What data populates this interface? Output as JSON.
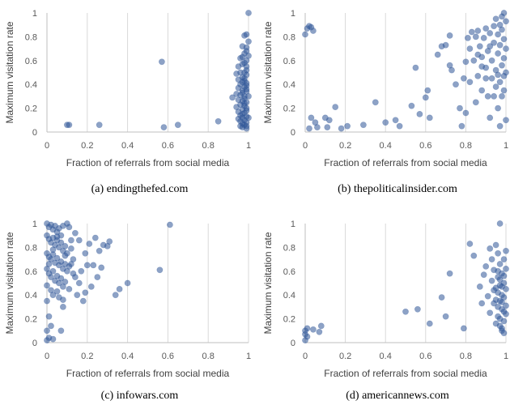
{
  "chart_data": [
    {
      "type": "scatter",
      "caption": "(a)  endingthefed.com",
      "xlabel": "Fraction of referrals from social media",
      "ylabel": "Maximum visitation rate",
      "xlim": [
        0,
        1
      ],
      "ylim": [
        0,
        1
      ],
      "xticks": [
        "0",
        "0.2",
        "0.4",
        "0.6",
        "0.8",
        "1"
      ],
      "yticks": [
        "0",
        "0.2",
        "0.4",
        "0.6",
        "0.8",
        "1"
      ],
      "grid": "vertical",
      "color": "#2f5597",
      "points": [
        [
          0.11,
          0.06
        ],
        [
          0.1,
          0.06
        ],
        [
          0.26,
          0.06
        ],
        [
          0.57,
          0.59
        ],
        [
          0.58,
          0.04
        ],
        [
          0.65,
          0.06
        ],
        [
          0.85,
          0.09
        ],
        [
          1.0,
          1.0
        ],
        [
          0.99,
          0.82
        ],
        [
          0.98,
          0.81
        ],
        [
          0.99,
          0.71
        ],
        [
          0.97,
          0.72
        ],
        [
          0.98,
          0.66
        ],
        [
          0.97,
          0.63
        ],
        [
          0.96,
          0.62
        ],
        [
          0.99,
          0.6
        ],
        [
          0.97,
          0.57
        ],
        [
          0.95,
          0.55
        ],
        [
          0.99,
          0.55
        ],
        [
          0.96,
          0.5
        ],
        [
          0.94,
          0.49
        ],
        [
          0.99,
          0.48
        ],
        [
          0.97,
          0.46
        ],
        [
          0.95,
          0.44
        ],
        [
          0.98,
          0.43
        ],
        [
          0.99,
          0.41
        ],
        [
          0.96,
          0.4
        ],
        [
          0.98,
          0.38
        ],
        [
          0.95,
          0.37
        ],
        [
          0.97,
          0.35
        ],
        [
          0.99,
          0.34
        ],
        [
          0.94,
          0.32
        ],
        [
          0.96,
          0.31
        ],
        [
          0.98,
          0.3
        ],
        [
          0.92,
          0.29
        ],
        [
          0.95,
          0.27
        ],
        [
          0.97,
          0.26
        ],
        [
          0.99,
          0.25
        ],
        [
          0.96,
          0.23
        ],
        [
          0.98,
          0.22
        ],
        [
          0.94,
          0.21
        ],
        [
          0.97,
          0.19
        ],
        [
          0.99,
          0.18
        ],
        [
          0.95,
          0.17
        ],
        [
          0.98,
          0.16
        ],
        [
          0.96,
          0.14
        ],
        [
          0.99,
          0.13
        ],
        [
          0.97,
          0.12
        ],
        [
          0.95,
          0.11
        ],
        [
          0.98,
          0.1
        ],
        [
          0.96,
          0.09
        ],
        [
          0.99,
          0.08
        ],
        [
          0.97,
          0.07
        ],
        [
          0.98,
          0.06
        ],
        [
          0.99,
          0.05
        ],
        [
          0.96,
          0.05
        ],
        [
          0.97,
          0.15
        ],
        [
          0.99,
          0.2
        ],
        [
          0.98,
          0.28
        ],
        [
          0.97,
          0.33
        ],
        [
          0.99,
          0.36
        ],
        [
          0.98,
          0.45
        ],
        [
          0.99,
          0.52
        ],
        [
          0.98,
          0.58
        ],
        [
          1.0,
          0.64
        ],
        [
          0.99,
          0.68
        ],
        [
          1.0,
          0.76
        ],
        [
          0.98,
          0.5
        ],
        [
          0.97,
          0.42
        ],
        [
          0.99,
          0.39
        ],
        [
          1.0,
          0.3
        ],
        [
          0.98,
          0.24
        ],
        [
          1.0,
          0.12
        ],
        [
          0.99,
          0.03
        ],
        [
          0.97,
          0.04
        ]
      ]
    },
    {
      "type": "scatter",
      "caption": "(b)  thepoliticalinsider.com",
      "xlabel": "Fraction of referrals from social media",
      "ylabel": "Maximum visitation rate",
      "xlim": [
        0,
        1
      ],
      "ylim": [
        0,
        1
      ],
      "xticks": [
        "0",
        "0.2",
        "0.4",
        "0.6",
        "0.8",
        "1"
      ],
      "yticks": [
        "0",
        "0.2",
        "0.4",
        "0.6",
        "0.8",
        "1"
      ],
      "grid": "vertical",
      "color": "#2f5597",
      "points": [
        [
          0.0,
          0.82
        ],
        [
          0.01,
          0.87
        ],
        [
          0.02,
          0.89
        ],
        [
          0.03,
          0.88
        ],
        [
          0.04,
          0.85
        ],
        [
          0.02,
          0.03
        ],
        [
          0.03,
          0.12
        ],
        [
          0.05,
          0.08
        ],
        [
          0.06,
          0.04
        ],
        [
          0.1,
          0.12
        ],
        [
          0.11,
          0.04
        ],
        [
          0.12,
          0.1
        ],
        [
          0.15,
          0.21
        ],
        [
          0.18,
          0.03
        ],
        [
          0.21,
          0.05
        ],
        [
          0.29,
          0.06
        ],
        [
          0.35,
          0.25
        ],
        [
          0.4,
          0.08
        ],
        [
          0.45,
          0.1
        ],
        [
          0.47,
          0.05
        ],
        [
          0.53,
          0.22
        ],
        [
          0.55,
          0.54
        ],
        [
          0.57,
          0.15
        ],
        [
          0.6,
          0.29
        ],
        [
          0.61,
          0.35
        ],
        [
          0.62,
          0.12
        ],
        [
          0.66,
          0.65
        ],
        [
          0.68,
          0.72
        ],
        [
          0.7,
          0.73
        ],
        [
          0.72,
          0.81
        ],
        [
          0.72,
          0.56
        ],
        [
          0.73,
          0.52
        ],
        [
          0.75,
          0.4
        ],
        [
          0.77,
          0.2
        ],
        [
          0.78,
          0.05
        ],
        [
          0.79,
          0.45
        ],
        [
          0.8,
          0.59
        ],
        [
          0.81,
          0.79
        ],
        [
          0.82,
          0.7
        ],
        [
          0.83,
          0.84
        ],
        [
          0.84,
          0.6
        ],
        [
          0.85,
          0.25
        ],
        [
          0.86,
          0.47
        ],
        [
          0.86,
          0.85
        ],
        [
          0.87,
          0.72
        ],
        [
          0.88,
          0.35
        ],
        [
          0.88,
          0.63
        ],
        [
          0.89,
          0.79
        ],
        [
          0.9,
          0.54
        ],
        [
          0.9,
          0.87
        ],
        [
          0.91,
          0.3
        ],
        [
          0.91,
          0.68
        ],
        [
          0.92,
          0.12
        ],
        [
          0.92,
          0.83
        ],
        [
          0.93,
          0.45
        ],
        [
          0.93,
          0.6
        ],
        [
          0.94,
          0.89
        ],
        [
          0.94,
          0.75
        ],
        [
          0.95,
          0.38
        ],
        [
          0.95,
          0.52
        ],
        [
          0.95,
          0.95
        ],
        [
          0.96,
          0.2
        ],
        [
          0.96,
          0.66
        ],
        [
          0.96,
          0.82
        ],
        [
          0.97,
          0.42
        ],
        [
          0.97,
          0.73
        ],
        [
          0.97,
          0.9
        ],
        [
          0.98,
          0.3
        ],
        [
          0.98,
          0.56
        ],
        [
          0.98,
          0.86
        ],
        [
          0.99,
          1.0
        ],
        [
          0.99,
          0.62
        ],
        [
          0.99,
          0.78
        ],
        [
          0.99,
          0.47
        ],
        [
          1.0,
          0.93
        ],
        [
          1.0,
          0.7
        ],
        [
          1.0,
          0.5
        ],
        [
          1.0,
          0.1
        ],
        [
          0.98,
          0.97
        ],
        [
          0.97,
          0.05
        ],
        [
          0.9,
          0.45
        ],
        [
          0.88,
          0.55
        ],
        [
          0.86,
          0.65
        ],
        [
          0.85,
          0.8
        ],
        [
          0.92,
          0.72
        ],
        [
          0.94,
          0.3
        ],
        [
          0.96,
          0.48
        ],
        [
          0.99,
          0.35
        ],
        [
          0.82,
          0.42
        ],
        [
          0.8,
          0.16
        ]
      ]
    },
    {
      "type": "scatter",
      "caption": "(c)  infowars.com",
      "xlabel": "Fraction of referrals from social media",
      "ylabel": "Maximum visitation rate",
      "xlim": [
        0,
        1
      ],
      "ylim": [
        0,
        1
      ],
      "xticks": [
        "0",
        "0.2",
        "0.4",
        "0.6",
        "0.8",
        "1"
      ],
      "yticks": [
        "0",
        "0.2",
        "0.4",
        "0.6",
        "0.8",
        "1"
      ],
      "grid": "vertical",
      "color": "#2f5597",
      "points": [
        [
          0.0,
          1.0
        ],
        [
          0.01,
          0.97
        ],
        [
          0.02,
          0.99
        ],
        [
          0.03,
          0.95
        ],
        [
          0.04,
          0.98
        ],
        [
          0.05,
          0.93
        ],
        [
          0.06,
          0.96
        ],
        [
          0.07,
          0.9
        ],
        [
          0.08,
          0.98
        ],
        [
          0.1,
          1.0
        ],
        [
          0.11,
          0.97
        ],
        [
          0.0,
          0.9
        ],
        [
          0.01,
          0.87
        ],
        [
          0.02,
          0.84
        ],
        [
          0.03,
          0.88
        ],
        [
          0.04,
          0.82
        ],
        [
          0.05,
          0.86
        ],
        [
          0.06,
          0.8
        ],
        [
          0.07,
          0.84
        ],
        [
          0.08,
          0.77
        ],
        [
          0.09,
          0.81
        ],
        [
          0.1,
          0.75
        ],
        [
          0.12,
          0.79
        ],
        [
          0.0,
          0.75
        ],
        [
          0.01,
          0.72
        ],
        [
          0.02,
          0.7
        ],
        [
          0.03,
          0.74
        ],
        [
          0.04,
          0.67
        ],
        [
          0.05,
          0.71
        ],
        [
          0.06,
          0.65
        ],
        [
          0.07,
          0.68
        ],
        [
          0.08,
          0.62
        ],
        [
          0.09,
          0.66
        ],
        [
          0.1,
          0.6
        ],
        [
          0.11,
          0.64
        ],
        [
          0.13,
          0.58
        ],
        [
          0.0,
          0.62
        ],
        [
          0.01,
          0.58
        ],
        [
          0.02,
          0.55
        ],
        [
          0.03,
          0.6
        ],
        [
          0.04,
          0.52
        ],
        [
          0.05,
          0.56
        ],
        [
          0.06,
          0.5
        ],
        [
          0.07,
          0.54
        ],
        [
          0.08,
          0.47
        ],
        [
          0.09,
          0.51
        ],
        [
          0.11,
          0.45
        ],
        [
          0.0,
          0.48
        ],
        [
          0.02,
          0.44
        ],
        [
          0.03,
          0.4
        ],
        [
          0.05,
          0.43
        ],
        [
          0.06,
          0.38
        ],
        [
          0.08,
          0.36
        ],
        [
          0.0,
          0.35
        ],
        [
          0.01,
          0.22
        ],
        [
          0.02,
          0.14
        ],
        [
          0.0,
          0.1
        ],
        [
          0.01,
          0.04
        ],
        [
          0.0,
          0.02
        ],
        [
          0.03,
          0.03
        ],
        [
          0.07,
          0.1
        ],
        [
          0.08,
          0.3
        ],
        [
          0.12,
          0.86
        ],
        [
          0.13,
          0.7
        ],
        [
          0.14,
          0.55
        ],
        [
          0.15,
          0.4
        ],
        [
          0.16,
          0.86
        ],
        [
          0.17,
          0.6
        ],
        [
          0.18,
          0.35
        ],
        [
          0.19,
          0.75
        ],
        [
          0.2,
          0.65
        ],
        [
          0.21,
          0.83
        ],
        [
          0.22,
          0.47
        ],
        [
          0.23,
          0.65
        ],
        [
          0.24,
          0.88
        ],
        [
          0.25,
          0.55
        ],
        [
          0.26,
          0.77
        ],
        [
          0.27,
          0.63
        ],
        [
          0.28,
          0.82
        ],
        [
          0.3,
          0.81
        ],
        [
          0.31,
          0.85
        ],
        [
          0.34,
          0.4
        ],
        [
          0.36,
          0.45
        ],
        [
          0.4,
          0.5
        ],
        [
          0.56,
          0.61
        ],
        [
          0.61,
          0.99
        ],
        [
          0.14,
          0.92
        ],
        [
          0.16,
          0.5
        ],
        [
          0.19,
          0.42
        ],
        [
          0.12,
          0.66
        ],
        [
          0.09,
          0.73
        ],
        [
          0.05,
          0.89
        ],
        [
          0.03,
          0.78
        ],
        [
          0.01,
          0.66
        ]
      ]
    },
    {
      "type": "scatter",
      "caption": "(d)  americannews.com",
      "xlabel": "Fraction of referrals from social media",
      "ylabel": "Maximum visitation rate",
      "xlim": [
        0,
        1
      ],
      "ylim": [
        0,
        1
      ],
      "xticks": [
        "0",
        "0.2",
        "0.4",
        "0.6",
        "0.8",
        "1"
      ],
      "yticks": [
        "0",
        "0.2",
        "0.4",
        "0.6",
        "0.8",
        "1"
      ],
      "grid": "vertical",
      "color": "#2f5597",
      "points": [
        [
          0.0,
          0.1
        ],
        [
          0.0,
          0.07
        ],
        [
          0.01,
          0.05
        ],
        [
          0.0,
          0.02
        ],
        [
          0.01,
          0.12
        ],
        [
          0.04,
          0.11
        ],
        [
          0.07,
          0.09
        ],
        [
          0.08,
          0.14
        ],
        [
          0.5,
          0.26
        ],
        [
          0.56,
          0.28
        ],
        [
          0.62,
          0.16
        ],
        [
          0.68,
          0.38
        ],
        [
          0.7,
          0.22
        ],
        [
          0.72,
          0.58
        ],
        [
          0.79,
          0.12
        ],
        [
          0.82,
          0.83
        ],
        [
          0.84,
          0.73
        ],
        [
          0.87,
          0.47
        ],
        [
          0.88,
          0.33
        ],
        [
          0.89,
          0.57
        ],
        [
          0.9,
          0.64
        ],
        [
          0.91,
          0.39
        ],
        [
          0.92,
          0.79
        ],
        [
          0.92,
          0.25
        ],
        [
          0.93,
          0.52
        ],
        [
          0.93,
          0.7
        ],
        [
          0.94,
          0.44
        ],
        [
          0.94,
          0.61
        ],
        [
          0.95,
          0.36
        ],
        [
          0.95,
          0.82
        ],
        [
          0.95,
          0.16
        ],
        [
          0.96,
          0.55
        ],
        [
          0.96,
          0.3
        ],
        [
          0.96,
          0.75
        ],
        [
          0.97,
          1.0
        ],
        [
          0.97,
          0.48
        ],
        [
          0.97,
          0.2
        ],
        [
          0.97,
          0.66
        ],
        [
          0.98,
          0.4
        ],
        [
          0.98,
          0.58
        ],
        [
          0.98,
          0.12
        ],
        [
          0.98,
          0.34
        ],
        [
          0.99,
          0.5
        ],
        [
          0.99,
          0.26
        ],
        [
          0.99,
          0.7
        ],
        [
          0.99,
          0.08
        ],
        [
          1.0,
          0.45
        ],
        [
          1.0,
          0.31
        ],
        [
          1.0,
          0.62
        ],
        [
          1.0,
          0.77
        ],
        [
          0.96,
          0.42
        ],
        [
          0.97,
          0.35
        ],
        [
          0.98,
          0.28
        ],
        [
          0.99,
          0.38
        ],
        [
          0.97,
          0.53
        ],
        [
          0.98,
          0.47
        ],
        [
          0.96,
          0.22
        ],
        [
          0.99,
          0.18
        ],
        [
          0.98,
          0.1
        ],
        [
          0.97,
          0.14
        ],
        [
          0.96,
          0.6
        ],
        [
          0.95,
          0.46
        ],
        [
          0.94,
          0.33
        ],
        [
          0.99,
          0.56
        ],
        [
          1.0,
          0.24
        ]
      ]
    }
  ]
}
